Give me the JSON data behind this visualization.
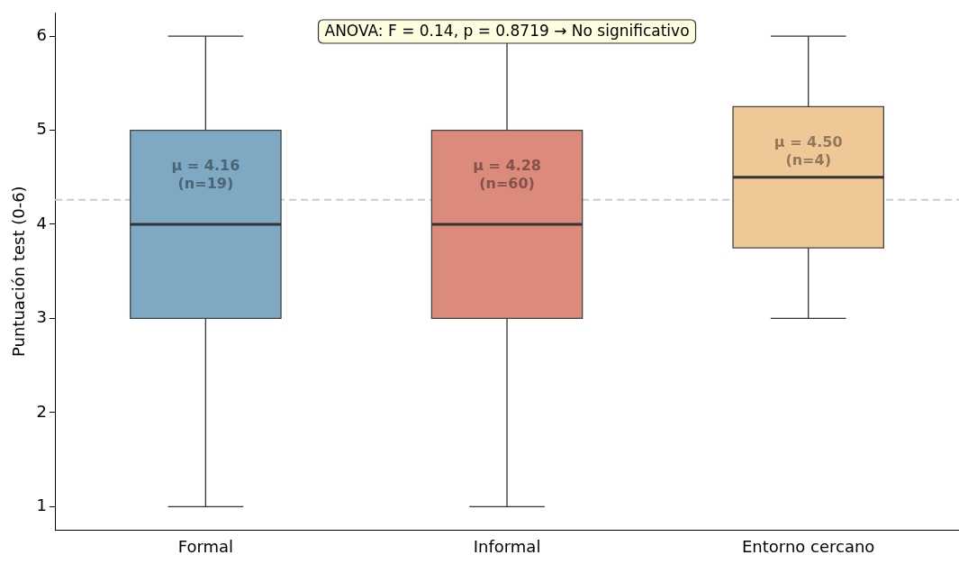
{
  "chart_data": {
    "type": "box",
    "ylabel": "Puntuación test (0-6)",
    "categories": [
      "Formal",
      "Informal",
      "Entorno cercano"
    ],
    "boxes": [
      {
        "low": 1,
        "q1": 3,
        "median": 4,
        "q3": 5,
        "high": 6
      },
      {
        "low": 1,
        "q1": 3,
        "median": 4,
        "q3": 5,
        "high": 6
      },
      {
        "low": 3,
        "q1": 3.75,
        "median": 4.5,
        "q3": 5.25,
        "high": 6
      }
    ],
    "colors": [
      "#7fa8c2",
      "#db8a7c",
      "#f0c898"
    ],
    "ylim": [
      0.75,
      6.25
    ],
    "yticks": [
      1,
      2,
      3,
      4,
      5,
      6
    ],
    "grid": false,
    "legend": false,
    "ref_lines": [
      {
        "axis": "y",
        "value": 4.26,
        "color": "#cccccc",
        "line_style": "dashed"
      }
    ],
    "annotations": [
      "ANOVA: F = 0.14, p = 0.8719 → No significativo",
      "μ = 4.16\n(n=19)",
      "μ = 4.28\n(n=60)",
      "μ = 4.50\n(n=4)"
    ]
  }
}
